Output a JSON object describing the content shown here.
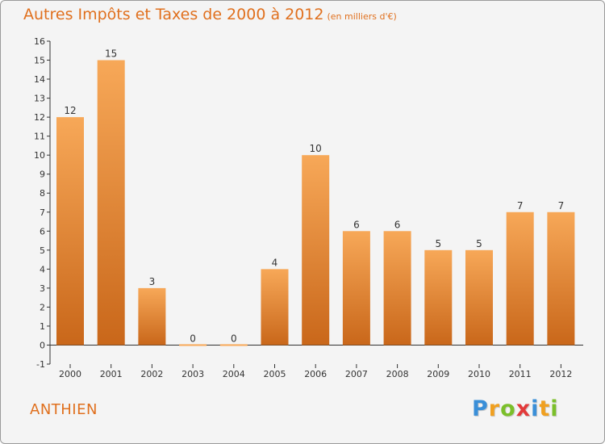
{
  "header": {
    "title": "Autres Impôts et Taxes de 2000 à 2012",
    "unit": "(en milliers d'€)"
  },
  "place_name": "ANTHIEN",
  "logo": {
    "letters": [
      "P",
      "r",
      "o",
      "x",
      "i",
      "t",
      "i"
    ],
    "colors": [
      "#3a8fd8",
      "#f0a020",
      "#7bbf2a",
      "#e23a3a",
      "#3a8fd8",
      "#f0a020",
      "#7bbf2a"
    ]
  },
  "colors": {
    "accent": "#e0701e",
    "bar_top": "#f7a858",
    "bar_bottom": "#c9671a"
  },
  "chart_data": {
    "type": "bar",
    "title": "Autres Impôts et Taxes de 2000 à 2012",
    "subtitle": "(en milliers d'€)",
    "categories": [
      "2000",
      "2001",
      "2002",
      "2003",
      "2004",
      "2005",
      "2006",
      "2007",
      "2008",
      "2009",
      "2010",
      "2011",
      "2012"
    ],
    "values": [
      12,
      15,
      3,
      0,
      0,
      4,
      10,
      6,
      6,
      5,
      5,
      7,
      7
    ],
    "ylim": [
      -1,
      16
    ],
    "yticks": [
      -1,
      0,
      1,
      2,
      3,
      4,
      5,
      6,
      7,
      8,
      9,
      10,
      11,
      12,
      13,
      14,
      15,
      16
    ],
    "grid": false,
    "legend": "none"
  }
}
